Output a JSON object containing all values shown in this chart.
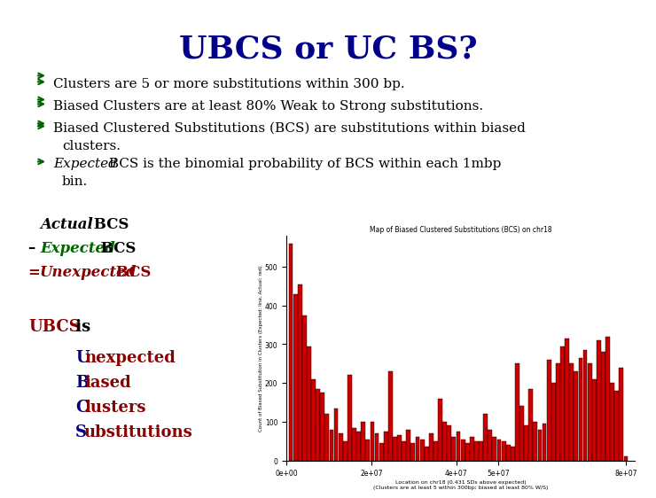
{
  "title": "UBCS or UC BS?",
  "title_color": "#00008B",
  "title_fontsize": 26,
  "background_color": "#FFFFFF",
  "bullet_color": "#006400",
  "text_fontsize": 11,
  "formula_fontsize": 12,
  "ubcs_fontsize": 12,
  "chart_title": "Map of Biased Clustered Substitutions (BCS) on chr18",
  "chart_xlabel": "Location on chr18 (0.431 SDs above expected)",
  "chart_xlabel2": "(Clusters are at least 5 within 300bp; biased at least 80% W/S)",
  "chart_ylabel": "Count of Biased Substitution in Clusters (Expected: line, Actual: red)",
  "chart_bar_color": "#CC0000",
  "formula_green": "#006400",
  "formula_red": "#8B0000",
  "ubcs_red": "#8B0000",
  "ubcs_navy": "#000080"
}
